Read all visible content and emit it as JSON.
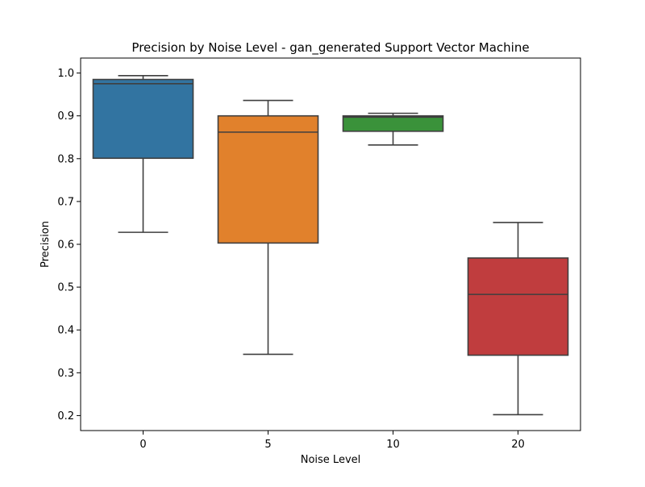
{
  "chart_data": {
    "type": "box",
    "title": "Precision by Noise Level - gan_generated Support Vector Machine",
    "xlabel": "Noise Level",
    "ylabel": "Precision",
    "ylim": [
      0.165,
      1.035
    ],
    "yticks": [
      "0.2",
      "0.3",
      "0.4",
      "0.5",
      "0.6",
      "0.7",
      "0.8",
      "0.9",
      "1.0"
    ],
    "grid": false,
    "categories": [
      "0",
      "5",
      "10",
      "20"
    ],
    "boxes": [
      {
        "category": "0",
        "min": 0.628,
        "q1": 0.801,
        "median": 0.975,
        "q3": 0.985,
        "max": 0.994,
        "color": "#3274a1"
      },
      {
        "category": "5",
        "min": 0.343,
        "q1": 0.603,
        "median": 0.862,
        "q3": 0.9,
        "max": 0.936,
        "color": "#e1812c"
      },
      {
        "category": "10",
        "min": 0.832,
        "q1": 0.864,
        "median": 0.897,
        "q3": 0.9,
        "max": 0.906,
        "color": "#3a923a"
      },
      {
        "category": "20",
        "min": 0.202,
        "q1": 0.341,
        "median": 0.483,
        "q3": 0.568,
        "max": 0.651,
        "color": "#c03d3e"
      }
    ]
  }
}
